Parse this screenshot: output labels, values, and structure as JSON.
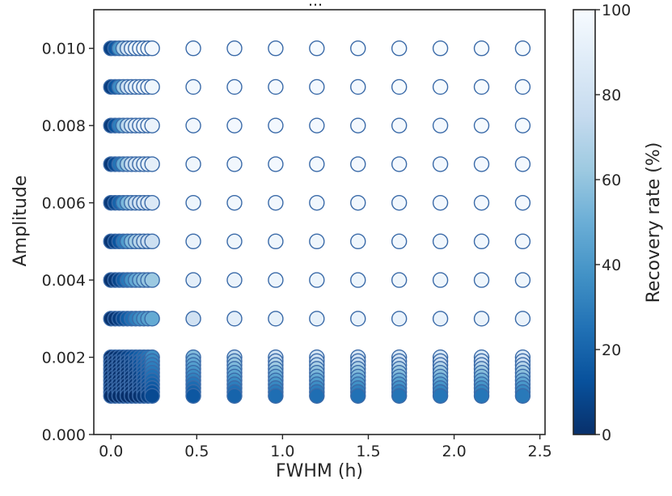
{
  "chart_data": {
    "type": "scatter",
    "title": "...",
    "xlabel": "FWHM (h)",
    "ylabel": "Amplitude",
    "xlim": [
      -0.1,
      2.53
    ],
    "ylim": [
      0.0,
      0.011
    ],
    "xticks": [
      0.0,
      0.5,
      1.0,
      1.5,
      2.0,
      2.5
    ],
    "xtick_labels": [
      "0.0",
      "0.5",
      "1.0",
      "1.5",
      "2.0",
      "2.5"
    ],
    "yticks": [
      0.0,
      0.002,
      0.004,
      0.006,
      0.008,
      0.01
    ],
    "ytick_labels": [
      "0.000",
      "0.002",
      "0.004",
      "0.006",
      "0.008",
      "0.010"
    ],
    "grid": false,
    "marker_edge_color": "#3a6aa8",
    "colorbar": {
      "label": "Recovery rate (%)",
      "range": [
        0,
        100
      ],
      "ticks": [
        0,
        20,
        40,
        60,
        80,
        100
      ],
      "tick_labels": [
        "0",
        "20",
        "40",
        "60",
        "80",
        "100"
      ],
      "colormap": "Blues_r",
      "stops": [
        "#08306b",
        "#08519c",
        "#2171b5",
        "#4292c6",
        "#6baed6",
        "#9ecae1",
        "#c6dbef",
        "#deebf7",
        "#f7fbff"
      ]
    },
    "amplitudes": [
      0.001,
      0.0011,
      0.0012,
      0.0013,
      0.0014,
      0.0015,
      0.0016,
      0.0017,
      0.0018,
      0.0019,
      0.002,
      0.003,
      0.004,
      0.005,
      0.006,
      0.007,
      0.008,
      0.009,
      0.01
    ],
    "series": [
      {
        "x": 0.0,
        "recovery": [
          0,
          0,
          0,
          0,
          0,
          0,
          0,
          0,
          0,
          0,
          0,
          1,
          1,
          2,
          3,
          3,
          4,
          5,
          6
        ]
      },
      {
        "x": 0.024,
        "recovery": [
          0,
          0,
          0,
          0,
          0,
          0,
          0,
          0,
          0,
          0,
          1,
          2,
          3,
          6,
          8,
          10,
          12,
          14,
          16
        ]
      },
      {
        "x": 0.048,
        "recovery": [
          0,
          0,
          0,
          0,
          0,
          0,
          0,
          0,
          0,
          1,
          2,
          5,
          8,
          14,
          20,
          26,
          30,
          35,
          40
        ]
      },
      {
        "x": 0.072,
        "recovery": [
          0,
          0,
          0,
          0,
          0,
          0,
          0,
          1,
          1,
          2,
          4,
          10,
          17,
          28,
          38,
          48,
          55,
          62,
          68
        ]
      },
      {
        "x": 0.096,
        "recovery": [
          0,
          0,
          0,
          0,
          0,
          1,
          1,
          2,
          3,
          4,
          7,
          17,
          28,
          42,
          54,
          64,
          72,
          78,
          82
        ]
      },
      {
        "x": 0.12,
        "recovery": [
          0,
          0,
          0,
          1,
          1,
          2,
          3,
          4,
          5,
          7,
          10,
          24,
          38,
          55,
          66,
          75,
          82,
          86,
          90
        ]
      },
      {
        "x": 0.144,
        "recovery": [
          0,
          1,
          1,
          2,
          3,
          4,
          5,
          7,
          9,
          11,
          14,
          30,
          47,
          64,
          75,
          82,
          87,
          90,
          93
        ]
      },
      {
        "x": 0.168,
        "recovery": [
          1,
          2,
          3,
          4,
          5,
          7,
          9,
          11,
          13,
          15,
          18,
          36,
          53,
          70,
          80,
          86,
          90,
          93,
          95
        ]
      },
      {
        "x": 0.192,
        "recovery": [
          3,
          4,
          6,
          8,
          10,
          12,
          14,
          16,
          18,
          20,
          22,
          40,
          57,
          74,
          83,
          88,
          92,
          94,
          96
        ]
      },
      {
        "x": 0.216,
        "recovery": [
          6,
          8,
          10,
          12,
          14,
          16,
          18,
          20,
          22,
          24,
          26,
          44,
          60,
          76,
          85,
          90,
          93,
          95,
          97
        ]
      },
      {
        "x": 0.24,
        "recovery": [
          10,
          13,
          16,
          19,
          22,
          25,
          28,
          30,
          32,
          34,
          36,
          48,
          62,
          78,
          86,
          91,
          94,
          96,
          98
        ]
      },
      {
        "x": 0.48,
        "recovery": [
          15,
          19,
          23,
          27,
          31,
          35,
          39,
          43,
          47,
          52,
          56,
          80,
          90,
          94,
          95,
          96,
          97,
          97,
          98
        ]
      },
      {
        "x": 0.72,
        "recovery": [
          20,
          25,
          30,
          35,
          40,
          45,
          50,
          55,
          60,
          66,
          72,
          90,
          94,
          96,
          97,
          97,
          98,
          98,
          98
        ]
      },
      {
        "x": 0.96,
        "recovery": [
          24,
          29,
          34,
          40,
          45,
          51,
          57,
          63,
          69,
          75,
          80,
          92,
          95,
          96,
          97,
          98,
          98,
          98,
          99
        ]
      },
      {
        "x": 1.2,
        "recovery": [
          24,
          30,
          36,
          42,
          48,
          54,
          60,
          66,
          72,
          78,
          82,
          92,
          95,
          96,
          97,
          98,
          98,
          98,
          99
        ]
      },
      {
        "x": 1.44,
        "recovery": [
          25,
          31,
          37,
          43,
          49,
          55,
          61,
          67,
          73,
          79,
          83,
          93,
          95,
          96,
          97,
          98,
          98,
          98,
          99
        ]
      },
      {
        "x": 1.68,
        "recovery": [
          26,
          32,
          38,
          44,
          50,
          56,
          62,
          68,
          74,
          79,
          84,
          93,
          96,
          97,
          97,
          98,
          98,
          99,
          99
        ]
      },
      {
        "x": 1.92,
        "recovery": [
          27,
          33,
          39,
          45,
          51,
          57,
          63,
          69,
          75,
          80,
          84,
          93,
          96,
          97,
          98,
          98,
          98,
          99,
          99
        ]
      },
      {
        "x": 2.16,
        "recovery": [
          27,
          33,
          39,
          45,
          51,
          57,
          63,
          69,
          75,
          80,
          85,
          94,
          96,
          97,
          98,
          98,
          99,
          99,
          99
        ]
      },
      {
        "x": 2.4,
        "recovery": [
          28,
          34,
          40,
          46,
          52,
          58,
          64,
          70,
          76,
          81,
          85,
          94,
          96,
          97,
          98,
          98,
          99,
          99,
          99
        ]
      }
    ]
  }
}
